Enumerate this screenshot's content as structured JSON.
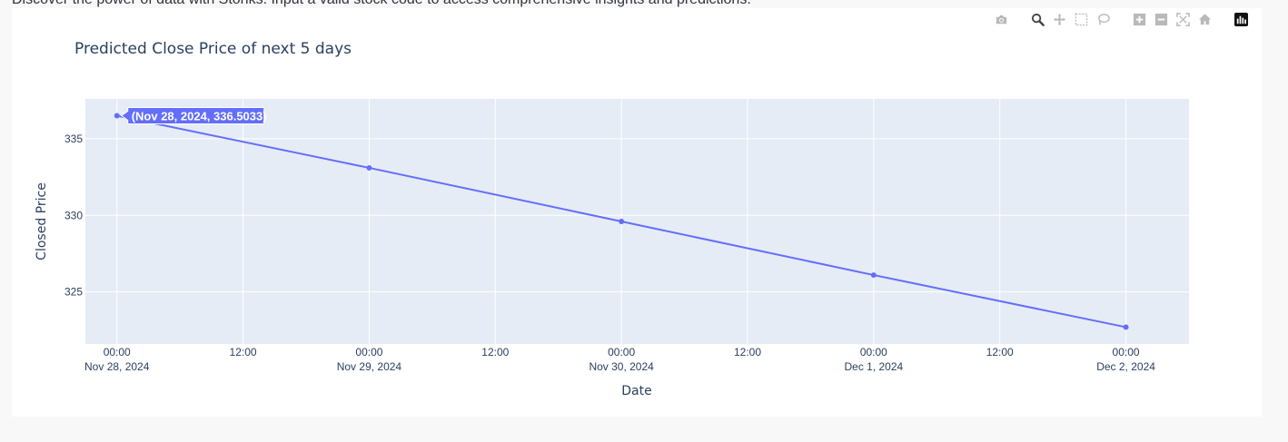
{
  "intro_text": "Discover the power of data with Stonks. Input a valid stock code to access comprehensive insights and predictions.",
  "modebar": {
    "icons": [
      "camera-icon",
      "zoom-icon",
      "pan-icon",
      "box-select-icon",
      "lasso-icon",
      "zoom-in-icon",
      "zoom-out-icon",
      "autoscale-icon",
      "home-icon",
      "plotly-logo-icon"
    ],
    "active_color": "#444444",
    "inactive_color": "#b9b9b9"
  },
  "chart_data": {
    "type": "line",
    "title": "Predicted Close Price of next 5 days",
    "xlabel": "Date",
    "ylabel": "Closed Price",
    "x": [
      "2024-11-28T00:00",
      "2024-11-29T00:00",
      "2024-11-30T00:00",
      "2024-12-01T00:00",
      "2024-12-02T00:00"
    ],
    "series": [
      {
        "values": [
          336.5033,
          333.1,
          329.6,
          326.1,
          322.7
        ],
        "color": "#636efa"
      }
    ],
    "xlim": [
      "2024-11-27T21:00",
      "2024-12-02T06:00"
    ],
    "ylim": [
      321.6,
      337.6
    ],
    "yticks": [
      325,
      330,
      335
    ],
    "xticks": [
      {
        "x": "2024-11-28T00:00",
        "line1": "00:00",
        "line2": "Nov 28, 2024"
      },
      {
        "x": "2024-11-28T12:00",
        "line1": "12:00",
        "line2": ""
      },
      {
        "x": "2024-11-29T00:00",
        "line1": "00:00",
        "line2": "Nov 29, 2024"
      },
      {
        "x": "2024-11-29T12:00",
        "line1": "12:00",
        "line2": ""
      },
      {
        "x": "2024-11-30T00:00",
        "line1": "00:00",
        "line2": "Nov 30, 2024"
      },
      {
        "x": "2024-11-30T12:00",
        "line1": "12:00",
        "line2": ""
      },
      {
        "x": "2024-12-01T00:00",
        "line1": "00:00",
        "line2": "Dec 1, 2024"
      },
      {
        "x": "2024-12-01T12:00",
        "line1": "12:00",
        "line2": ""
      },
      {
        "x": "2024-12-02T00:00",
        "line1": "00:00",
        "line2": "Dec 2, 2024"
      }
    ],
    "grid": true,
    "plot_bgcolor": "#e5ecf6",
    "hover_label": "(Nov 28, 2024, 336.5033)"
  }
}
